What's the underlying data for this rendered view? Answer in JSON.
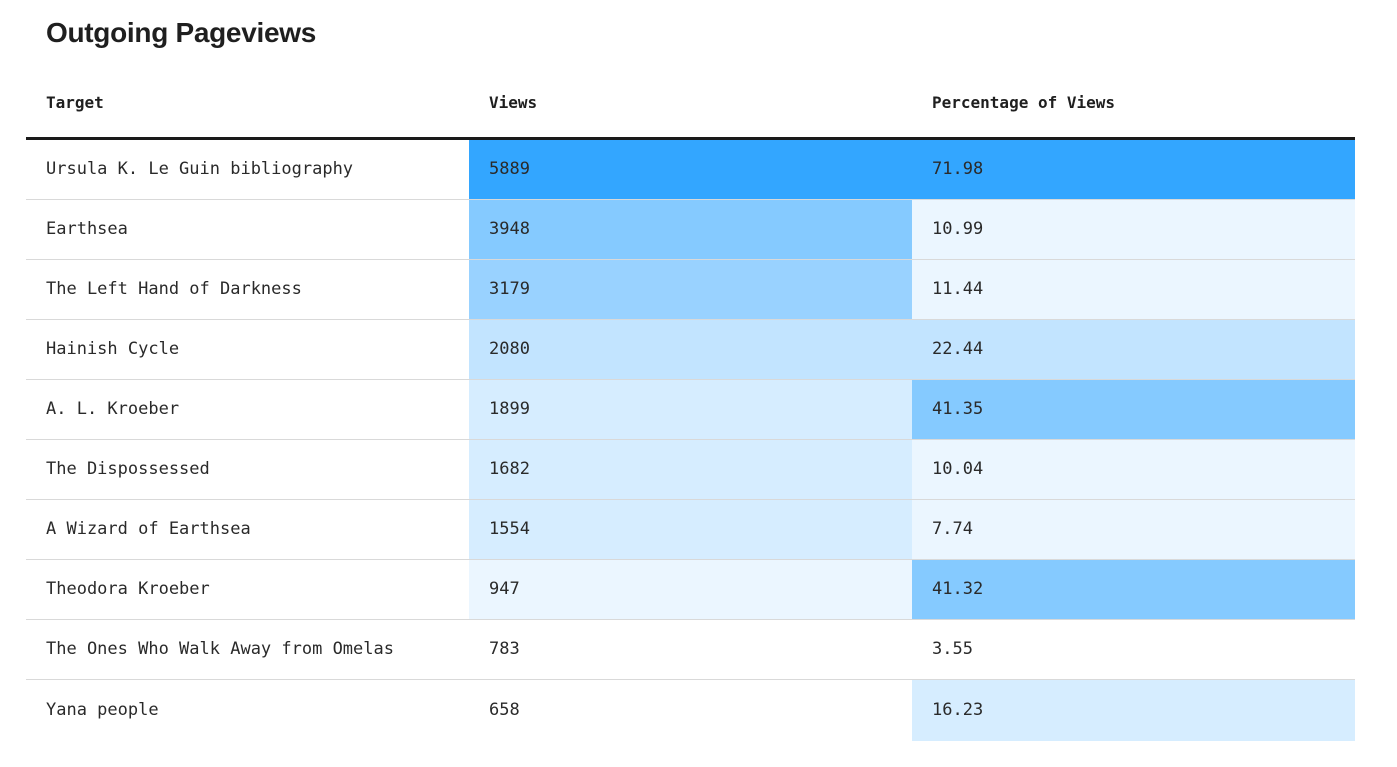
{
  "title": "Outgoing Pageviews",
  "columns": [
    "Target",
    "Views",
    "Percentage of Views"
  ],
  "colors": {
    "shade_1": "#33a6ff",
    "shade_2": "#85caff",
    "shade_3": "#99d2ff",
    "shade_4": "#c2e4ff",
    "shade_5": "#d6edff",
    "shade_6": "#ebf6ff",
    "none": "#ffffff"
  },
  "rows": [
    {
      "target": "Ursula K. Le Guin bibliography",
      "views": "5889",
      "pct": "71.98",
      "views_shade": "shade_1",
      "pct_shade": "shade_1"
    },
    {
      "target": "Earthsea",
      "views": "3948",
      "pct": "10.99",
      "views_shade": "shade_2",
      "pct_shade": "shade_6"
    },
    {
      "target": "The Left Hand of Darkness",
      "views": "3179",
      "pct": "11.44",
      "views_shade": "shade_3",
      "pct_shade": "shade_6"
    },
    {
      "target": "Hainish Cycle",
      "views": "2080",
      "pct": "22.44",
      "views_shade": "shade_4",
      "pct_shade": "shade_4"
    },
    {
      "target": "A. L. Kroeber",
      "views": "1899",
      "pct": "41.35",
      "views_shade": "shade_5",
      "pct_shade": "shade_2"
    },
    {
      "target": "The Dispossessed",
      "views": "1682",
      "pct": "10.04",
      "views_shade": "shade_5",
      "pct_shade": "shade_6"
    },
    {
      "target": "A Wizard of Earthsea",
      "views": "1554",
      "pct": "7.74",
      "views_shade": "shade_5",
      "pct_shade": "shade_6"
    },
    {
      "target": "Theodora Kroeber",
      "views": "947",
      "pct": "41.32",
      "views_shade": "shade_6",
      "pct_shade": "shade_2"
    },
    {
      "target": "The Ones Who Walk Away from Omelas",
      "views": "783",
      "pct": "3.55",
      "views_shade": "none",
      "pct_shade": "none"
    },
    {
      "target": "Yana people",
      "views": "658",
      "pct": "16.23",
      "views_shade": "none",
      "pct_shade": "shade_5"
    }
  ]
}
